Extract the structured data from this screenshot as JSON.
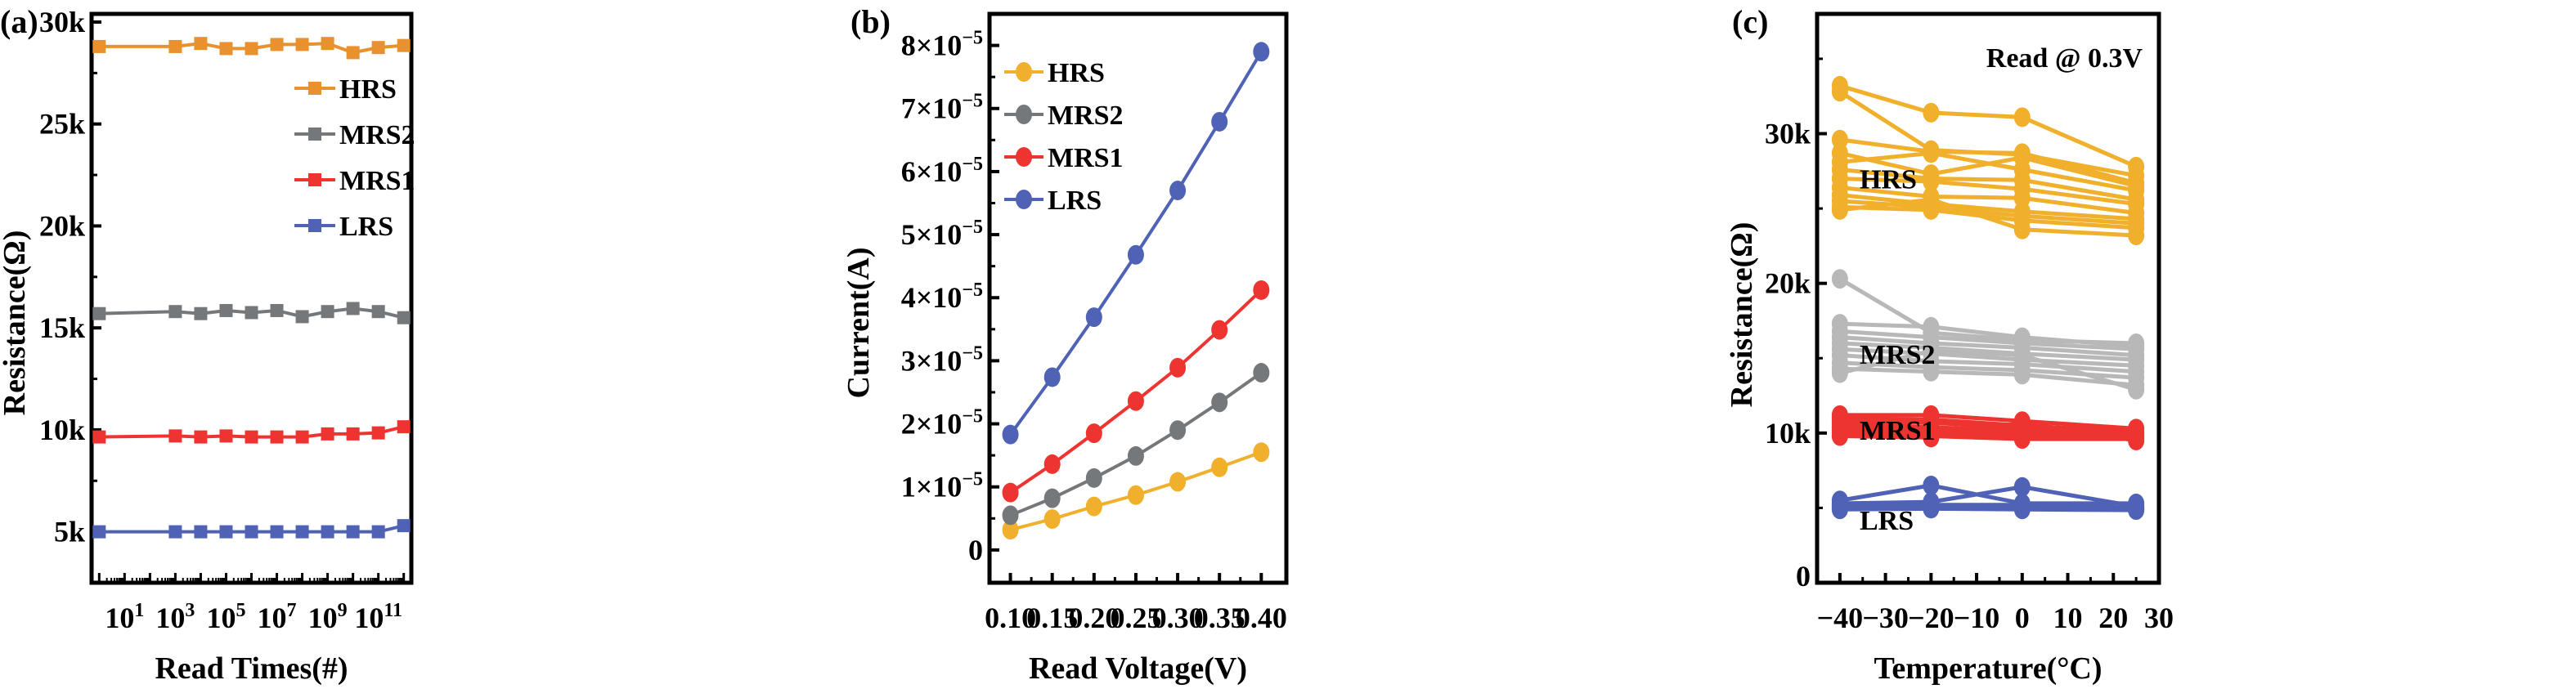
{
  "chart_data": [
    {
      "panel": "(a)",
      "type": "line",
      "marker": "square",
      "xscale": "log",
      "xlabel": "Read Times(#)",
      "ylabel": "Resistance(Ω)",
      "xlim_exp": [
        -0.3,
        12.3
      ],
      "ylim": [
        2500,
        30400
      ],
      "x_ticks": [
        {
          "exp": 1,
          "base": "10",
          "sup": "1"
        },
        {
          "exp": 3,
          "base": "10",
          "sup": "3"
        },
        {
          "exp": 5,
          "base": "10",
          "sup": "5"
        },
        {
          "exp": 7,
          "base": "10",
          "sup": "7"
        },
        {
          "exp": 9,
          "base": "10",
          "sup": "9"
        },
        {
          "exp": 11,
          "base": "10",
          "sup": "11"
        }
      ],
      "y_ticks": [
        {
          "value": 5000,
          "label": "5k"
        },
        {
          "value": 10000,
          "label": "10k"
        },
        {
          "value": 15000,
          "label": "15k"
        },
        {
          "value": 20000,
          "label": "20k"
        },
        {
          "value": 25000,
          "label": "25k"
        },
        {
          "value": 30000,
          "label": "30k"
        }
      ],
      "x_exponents": [
        0,
        3,
        4,
        5,
        6,
        7,
        8,
        9,
        10,
        11,
        12
      ],
      "series": [
        {
          "name": "HRS",
          "color": "#e8912e",
          "values": [
            28800,
            28800,
            28950,
            28700,
            28700,
            28900,
            28900,
            28950,
            28500,
            28750,
            28850
          ]
        },
        {
          "name": "MRS2",
          "color": "#75787b",
          "values": [
            15700,
            15800,
            15700,
            15850,
            15750,
            15850,
            15550,
            15800,
            15950,
            15800,
            15500
          ]
        },
        {
          "name": "MRS1",
          "color": "#ee3430",
          "values": [
            9650,
            9700,
            9650,
            9700,
            9650,
            9650,
            9650,
            9800,
            9800,
            9850,
            10150
          ]
        },
        {
          "name": "LRS",
          "color": "#4f62b5",
          "values": [
            5000,
            5000,
            5000,
            5000,
            5000,
            5000,
            5000,
            5000,
            5000,
            5000,
            5300
          ]
        }
      ],
      "legend_position": "upper-right"
    },
    {
      "panel": "(b)",
      "type": "line",
      "marker": "circle",
      "xlabel": "Read Voltage(V)",
      "ylabel": "Current(A)",
      "xlim": [
        0.075,
        0.43
      ],
      "ylim": [
        -5.2e-06,
        8.5e-05
      ],
      "x_ticks": [
        "0.10",
        "0.15",
        "0.20",
        "0.25",
        "0.30",
        "0.35",
        "0.40"
      ],
      "y_ticks": [
        {
          "value": 0,
          "mant": "0",
          "exp": ""
        },
        {
          "value": 1e-05,
          "mant": "1×10",
          "exp": "−5"
        },
        {
          "value": 2e-05,
          "mant": "2×10",
          "exp": "−5"
        },
        {
          "value": 3e-05,
          "mant": "3×10",
          "exp": "−5"
        },
        {
          "value": 4e-05,
          "mant": "4×10",
          "exp": "−5"
        },
        {
          "value": 5e-05,
          "mant": "5×10",
          "exp": "−5"
        },
        {
          "value": 6e-05,
          "mant": "6×10",
          "exp": "−5"
        },
        {
          "value": 7e-05,
          "mant": "7×10",
          "exp": "−5"
        },
        {
          "value": 8e-05,
          "mant": "8×10",
          "exp": "−5"
        }
      ],
      "x": [
        0.1,
        0.15,
        0.2,
        0.25,
        0.3,
        0.35,
        0.4
      ],
      "series": [
        {
          "name": "HRS",
          "color": "#f0b02b",
          "values": [
            3.2e-06,
            4.9e-06,
            6.9e-06,
            8.7e-06,
            1.08e-05,
            1.31e-05,
            1.55e-05
          ]
        },
        {
          "name": "MRS2",
          "color": "#75787b",
          "values": [
            5.5e-06,
            8.2e-06,
            1.14e-05,
            1.49e-05,
            1.9e-05,
            2.34e-05,
            2.81e-05
          ]
        },
        {
          "name": "MRS1",
          "color": "#ee3430",
          "values": [
            9.1e-06,
            1.36e-05,
            1.85e-05,
            2.36e-05,
            2.89e-05,
            3.49e-05,
            4.12e-05
          ]
        },
        {
          "name": "LRS",
          "color": "#4f62b5",
          "values": [
            1.83e-05,
            2.74e-05,
            3.69e-05,
            4.68e-05,
            5.7e-05,
            6.79e-05,
            7.9e-05
          ]
        }
      ],
      "legend_position": "upper-left"
    },
    {
      "panel": "(c)",
      "type": "line",
      "marker": "circle",
      "xlabel": "Temperature(°C)",
      "ylabel": "Resistance(Ω)",
      "annotation": "Read @ 0.3V",
      "xlim": [
        -45,
        30
      ],
      "ylim": [
        0,
        38000
      ],
      "x_ticks": [
        "−40",
        "−30",
        "−20",
        "−10",
        "0",
        "10",
        "20",
        "30"
      ],
      "x_tick_values": [
        -40,
        -30,
        -20,
        -10,
        0,
        10,
        20,
        30
      ],
      "y_ticks": [
        {
          "value": 0,
          "label": "0"
        },
        {
          "value": 10000,
          "label": "10k"
        },
        {
          "value": 20000,
          "label": "20k"
        },
        {
          "value": 30000,
          "label": "30k"
        }
      ],
      "x": [
        -40,
        -20,
        0,
        25
      ],
      "groups": [
        {
          "name": "HRS",
          "color": "#f0b02b",
          "devices": [
            [
              33200,
              31400,
              31100,
              27800
            ],
            [
              32800,
              28900,
              28600,
              27200
            ],
            [
              29600,
              28800,
              28700,
              26700
            ],
            [
              28700,
              27300,
              28400,
              26500
            ],
            [
              28100,
              28700,
              27600,
              26200
            ],
            [
              27600,
              27000,
              26900,
              25600
            ],
            [
              27000,
              26800,
              26300,
              25300
            ],
            [
              26400,
              25800,
              25700,
              24700
            ],
            [
              25900,
              25300,
              24800,
              24300
            ],
            [
              25500,
              25100,
              24500,
              24000
            ],
            [
              25100,
              24900,
              24200,
              23700
            ],
            [
              24900,
              25600,
              23600,
              23200
            ]
          ]
        },
        {
          "name": "MRS2",
          "color": "#b8b8b8",
          "devices": [
            [
              20300,
              16700,
              16200,
              16000
            ],
            [
              17300,
              17100,
              16400,
              15800
            ],
            [
              16800,
              16400,
              16000,
              15600
            ],
            [
              16400,
              16000,
              15700,
              15200
            ],
            [
              16000,
              15700,
              15300,
              14900
            ],
            [
              15600,
              15300,
              14900,
              14500
            ],
            [
              15200,
              14800,
              14600,
              14100
            ],
            [
              14700,
              14400,
              14200,
              13700
            ],
            [
              14300,
              14100,
              13900,
              13200
            ],
            [
              14000,
              15500,
              15200,
              12900
            ]
          ]
        },
        {
          "name": "MRS1",
          "color": "#ee3430",
          "devices": [
            [
              11200,
              11200,
              10800,
              10300
            ],
            [
              11000,
              10900,
              10500,
              10100
            ],
            [
              10800,
              10700,
              10300,
              10000
            ],
            [
              10600,
              10400,
              10100,
              9900
            ],
            [
              10400,
              10200,
              9900,
              9800
            ],
            [
              10200,
              10000,
              9700,
              9700
            ],
            [
              10000,
              9800,
              9600,
              9600
            ],
            [
              9800,
              9700,
              10700,
              9500
            ]
          ]
        },
        {
          "name": "LRS",
          "color": "#4f62b5",
          "devices": [
            [
              5500,
              6500,
              5300,
              5300
            ],
            [
              5300,
              5400,
              6400,
              5100
            ],
            [
              5200,
              5200,
              5200,
              5000
            ],
            [
              5100,
              5100,
              5100,
              4950
            ],
            [
              5000,
              5000,
              5000,
              4900
            ],
            [
              4900,
              4950,
              4900,
              4850
            ]
          ]
        }
      ],
      "group_labels": [
        "HRS",
        "MRS2",
        "MRS1",
        "LRS"
      ]
    }
  ]
}
